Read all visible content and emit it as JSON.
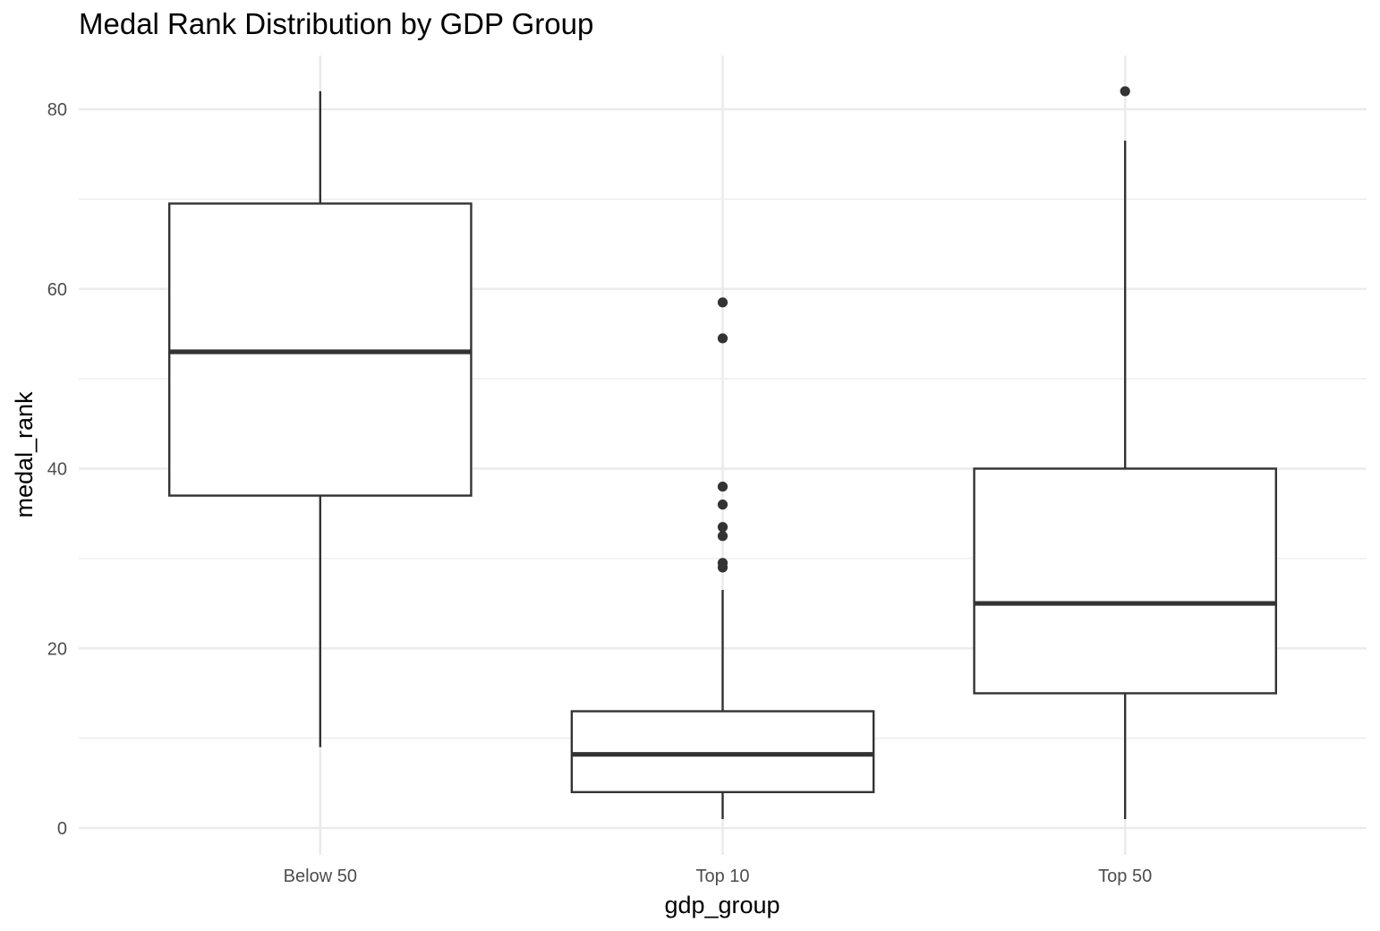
{
  "chart_data": {
    "type": "boxplot",
    "title": "Medal Rank Distribution by GDP Group",
    "xlabel": "gdp_group",
    "ylabel": "medal_rank",
    "categories": [
      "Below 50",
      "Top 10",
      "Top 50"
    ],
    "ylim": [
      0,
      86
    ],
    "yticks": [
      0,
      20,
      40,
      60,
      80
    ],
    "grid": true,
    "boxes": [
      {
        "category": "Below 50",
        "whisker_low": 9,
        "q1": 37,
        "median": 53,
        "q3": 69.5,
        "whisker_high": 82,
        "outliers": []
      },
      {
        "category": "Top 10",
        "whisker_low": 1,
        "q1": 4,
        "median": 8.2,
        "q3": 13,
        "whisker_high": 26.5,
        "outliers": [
          29,
          29.5,
          32.5,
          33.5,
          36,
          38,
          54.5,
          58.5
        ]
      },
      {
        "category": "Top 50",
        "whisker_low": 1,
        "q1": 15,
        "median": 25,
        "q3": 40,
        "whisker_high": 76.5,
        "outliers": [
          82
        ]
      }
    ]
  }
}
